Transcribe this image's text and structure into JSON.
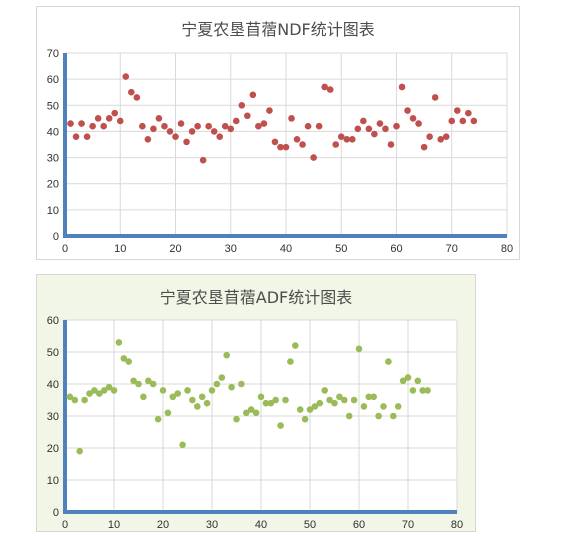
{
  "chart_data": [
    {
      "type": "scatter",
      "title": "宁夏农垦苜蓿NDF统计图表",
      "xlim": [
        0,
        80
      ],
      "ylim": [
        0,
        70
      ],
      "xticks": [
        "0",
        "10",
        "20",
        "30",
        "40",
        "50",
        "60",
        "70",
        "80"
      ],
      "yticks": [
        "0",
        "10",
        "20",
        "30",
        "40",
        "50",
        "60",
        "70"
      ],
      "grid": true,
      "color": "#c0504d",
      "x": [
        1,
        2,
        3,
        4,
        5,
        6,
        7,
        8,
        9,
        10,
        11,
        12,
        13,
        14,
        15,
        16,
        17,
        18,
        19,
        20,
        21,
        22,
        23,
        24,
        25,
        26,
        27,
        28,
        29,
        30,
        31,
        32,
        33,
        34,
        35,
        36,
        37,
        38,
        39,
        40,
        41,
        42,
        43,
        44,
        45,
        46,
        47,
        48,
        49,
        50,
        51,
        52,
        53,
        54,
        55,
        56,
        57,
        58,
        59,
        60,
        61,
        62,
        63,
        64,
        65,
        66,
        67,
        68,
        69,
        70,
        71,
        72,
        73,
        74
      ],
      "y": [
        43,
        38,
        43,
        38,
        42,
        45,
        42,
        45,
        47,
        44,
        61,
        55,
        53,
        42,
        37,
        41,
        45,
        42,
        40,
        38,
        43,
        36,
        40,
        42,
        29,
        42,
        40,
        38,
        42,
        41,
        44,
        50,
        46,
        54,
        42,
        43,
        48,
        36,
        34,
        34,
        45,
        37,
        35,
        42,
        30,
        42,
        57,
        56,
        35,
        38,
        37,
        37,
        41,
        44,
        41,
        39,
        43,
        41,
        35,
        42,
        57,
        48,
        45,
        43,
        34,
        38,
        53,
        37,
        38,
        44,
        48,
        44,
        47,
        44
      ]
    },
    {
      "type": "scatter",
      "title": "宁夏农垦苜蓿ADF统计图表",
      "xlim": [
        0,
        80
      ],
      "ylim": [
        0,
        60
      ],
      "xticks": [
        "0",
        "10",
        "20",
        "30",
        "40",
        "50",
        "60",
        "70",
        "80"
      ],
      "yticks": [
        "0",
        "10",
        "20",
        "30",
        "40",
        "50",
        "60"
      ],
      "grid": true,
      "color": "#9bbb59",
      "x": [
        1,
        2,
        3,
        4,
        5,
        6,
        7,
        8,
        9,
        10,
        11,
        12,
        13,
        14,
        15,
        16,
        17,
        18,
        19,
        20,
        21,
        22,
        23,
        24,
        25,
        26,
        27,
        28,
        29,
        30,
        31,
        32,
        33,
        34,
        35,
        36,
        37,
        38,
        39,
        40,
        41,
        42,
        43,
        44,
        45,
        46,
        47,
        48,
        49,
        50,
        51,
        52,
        53,
        54,
        55,
        56,
        57,
        58,
        59,
        60,
        61,
        62,
        63,
        64,
        65,
        66,
        67,
        68,
        69,
        70,
        71,
        72,
        73,
        74
      ],
      "y": [
        36,
        35,
        19,
        35,
        37,
        38,
        37,
        38,
        39,
        38,
        53,
        48,
        47,
        41,
        40,
        36,
        41,
        40,
        29,
        38,
        31,
        36,
        37,
        21,
        38,
        35,
        33,
        36,
        34,
        38,
        40,
        42,
        49,
        39,
        29,
        40,
        31,
        32,
        31,
        36,
        34,
        34,
        35,
        27,
        35,
        47,
        52,
        32,
        29,
        32,
        33,
        34,
        38,
        35,
        34,
        36,
        35,
        30,
        35,
        51,
        33,
        36,
        36,
        30,
        33,
        47,
        30,
        33,
        41,
        42,
        38,
        41,
        38,
        38
      ]
    }
  ]
}
